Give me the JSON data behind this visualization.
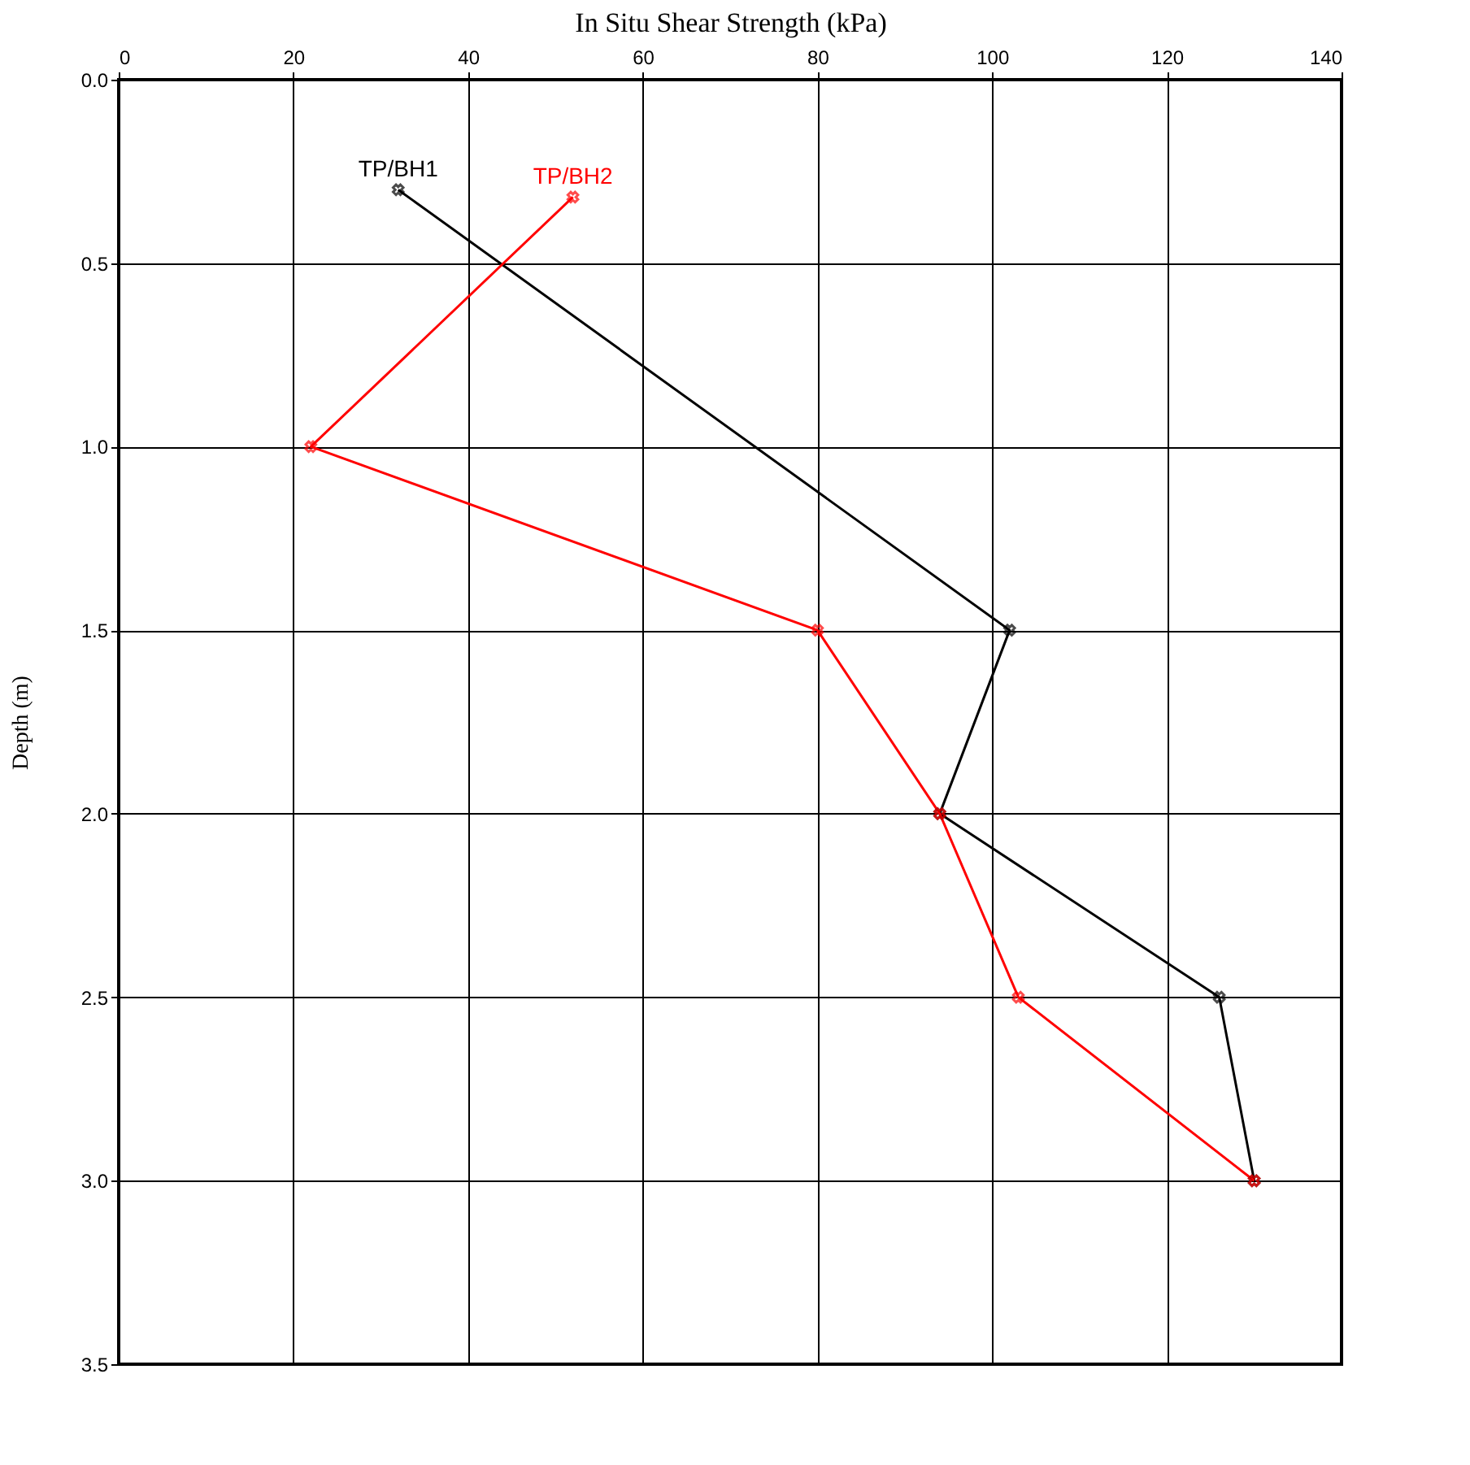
{
  "chart_data": {
    "type": "line",
    "xlabel": "In Situ Shear Strength (kPa)",
    "ylabel": "Depth (m)",
    "xlim": [
      0,
      140
    ],
    "xticks": [
      0,
      20,
      40,
      60,
      80,
      100,
      120,
      140
    ],
    "ylim": [
      3.5,
      0
    ],
    "yticks": [
      {
        "value": 0,
        "label": "0.0"
      },
      {
        "value": 0.5,
        "label": "0.5"
      },
      {
        "value": 1,
        "label": "1.0"
      },
      {
        "value": 1.5,
        "label": "1.5"
      },
      {
        "value": 2,
        "label": "2.0"
      },
      {
        "value": 2.5,
        "label": "2.5"
      },
      {
        "value": 3,
        "label": "3.0"
      },
      {
        "value": 3.5,
        "label": "3.5"
      }
    ],
    "grid": true,
    "marker": "cross",
    "line_style": "solid",
    "legend": false,
    "series": [
      {
        "name": "TP/BH1",
        "color": "#000000",
        "x": [
          32,
          102,
          94,
          126,
          130
        ],
        "values": [
          0.3,
          1.5,
          2.0,
          2.5,
          3.0
        ]
      },
      {
        "name": "TP/BH2",
        "color": "#ff0000",
        "x": [
          52,
          22,
          80,
          94,
          103,
          130
        ],
        "values": [
          0.32,
          1.0,
          1.5,
          2.0,
          2.5,
          3.0
        ]
      }
    ]
  }
}
